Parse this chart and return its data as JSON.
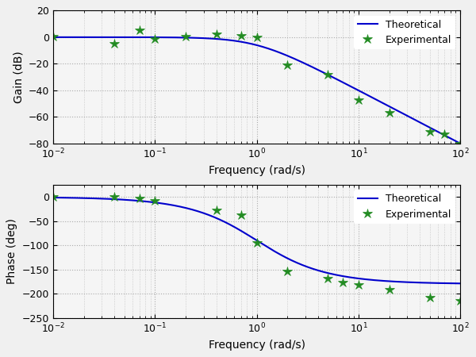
{
  "freq_min": 0.01,
  "freq_max": 100,
  "gain_ylim": [
    -80,
    20
  ],
  "gain_yticks": [
    -80,
    -60,
    -40,
    -20,
    0,
    20
  ],
  "phase_ylim": [
    -250,
    25
  ],
  "phase_yticks": [
    -250,
    -200,
    -150,
    -100,
    -50,
    0
  ],
  "gain_ylabel": "Gain (dB)",
  "phase_ylabel": "Phase (deg)",
  "xlabel": "Frequency (rad/s)",
  "line_color": "#0000cc",
  "marker_color": "#228B22",
  "legend_labels": [
    "Theoretical",
    "Experimental"
  ],
  "bg_color": "#f0f0f0",
  "plot_bg_color": "#f5f5f5",
  "grid_color": "#aaaaaa",
  "transfer_order": 2,
  "tau": 1.0,
  "exp_gain_freq": [
    0.01,
    0.04,
    0.07,
    0.1,
    0.2,
    0.4,
    0.7,
    1.0,
    2.0,
    5.0,
    10.0,
    20.0,
    50.0,
    70.0,
    100.0
  ],
  "exp_gain_vals": [
    0.5,
    -5.0,
    5.0,
    -1.0,
    0.5,
    2.5,
    1.0,
    0.0,
    -21.0,
    -28.0,
    -47.0,
    -57.0,
    -71.0,
    -73.0,
    -80.0
  ],
  "exp_phase_freq": [
    0.01,
    0.04,
    0.07,
    0.1,
    0.4,
    0.7,
    1.0,
    2.0,
    5.0,
    7.0,
    10.0,
    20.0,
    50.0,
    100.0
  ],
  "exp_phase_vals": [
    0.0,
    0.0,
    -3.0,
    -8.0,
    -28.0,
    -38.0,
    -95.0,
    -153.0,
    -168.0,
    -177.0,
    -182.0,
    -192.0,
    -208.0,
    -215.0
  ]
}
